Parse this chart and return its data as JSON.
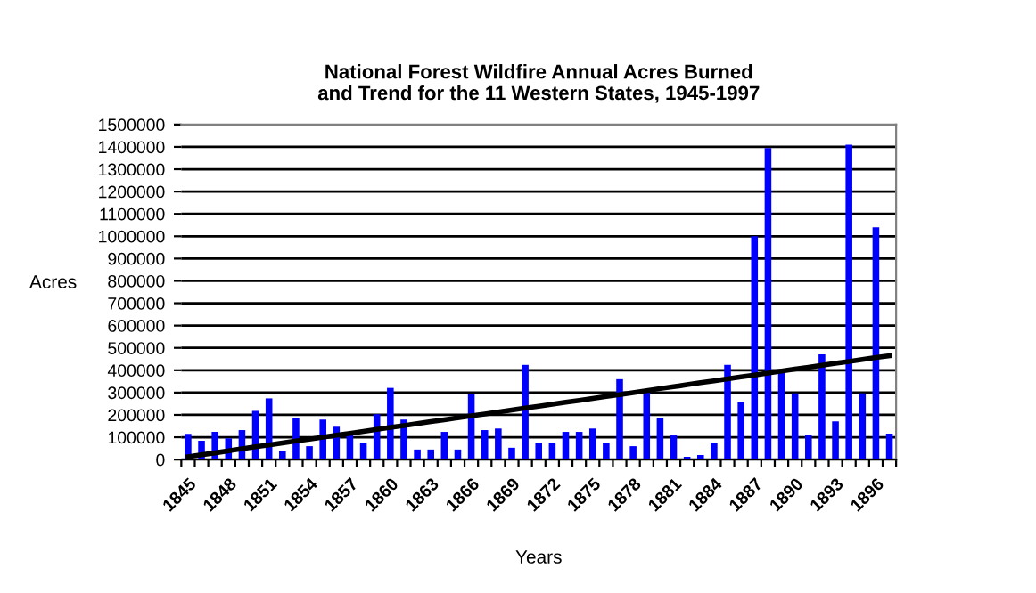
{
  "chart_data": {
    "type": "bar",
    "title": "National Forest Wildfire Annual Acres Burned\nand Trend for the 11 Western States, 1945-1997",
    "xlabel": "Years",
    "ylabel": "Acres",
    "categories": [
      "1845",
      null,
      null,
      "1848",
      null,
      null,
      "1851",
      null,
      null,
      "1854",
      null,
      null,
      "1857",
      null,
      null,
      "1860",
      null,
      null,
      "1863",
      null,
      null,
      "1866",
      null,
      null,
      "1869",
      null,
      null,
      "1872",
      null,
      null,
      "1875",
      null,
      null,
      "1878",
      null,
      null,
      "1881",
      null,
      null,
      "1884",
      null,
      null,
      "1887",
      null,
      null,
      "1890",
      null,
      null,
      "1893",
      null,
      null,
      "1896",
      null
    ],
    "series": [
      {
        "color": "#0000ff",
        "values": [
          115000,
          84000,
          124000,
          95000,
          132000,
          218000,
          274000,
          37000,
          187000,
          60000,
          179000,
          147000,
          116000,
          76000,
          203000,
          321000,
          179000,
          45000,
          45000,
          124000,
          45000,
          292000,
          132000,
          139000,
          53000,
          424000,
          76000,
          76000,
          124000,
          124000,
          139000,
          76000,
          360000,
          60000,
          305000,
          187000,
          108000,
          13000,
          21000,
          76000,
          424000,
          258000,
          1000000,
          1395000,
          400000,
          297000,
          108000,
          471000,
          171000,
          1410000,
          297000,
          1040000,
          116000
        ]
      },
      {
        "type": "line",
        "color": "#000000",
        "values": [
          13000,
          22000,
          30000,
          39000,
          48000,
          57000,
          65000,
          74000,
          83000,
          91000,
          100000,
          109000,
          117000,
          126000,
          135000,
          144000,
          152000,
          161000,
          170000,
          178000,
          187000,
          196000,
          204000,
          213000,
          222000,
          231000,
          239000,
          248000,
          257000,
          265000,
          274000,
          283000,
          291000,
          300000,
          309000,
          318000,
          326000,
          335000,
          344000,
          352000,
          361000,
          370000,
          378000,
          387000,
          396000,
          405000,
          413000,
          422000,
          431000,
          439000,
          448000,
          457000,
          465000
        ]
      }
    ],
    "ylim": [
      0,
      1500000
    ],
    "yticks": [
      0,
      100000,
      200000,
      300000,
      400000,
      500000,
      600000,
      700000,
      800000,
      900000,
      1000000,
      1100000,
      1200000,
      1300000,
      1400000,
      1500000
    ],
    "grid": "y",
    "legend": false,
    "marker": "none",
    "line_style": "solid"
  }
}
